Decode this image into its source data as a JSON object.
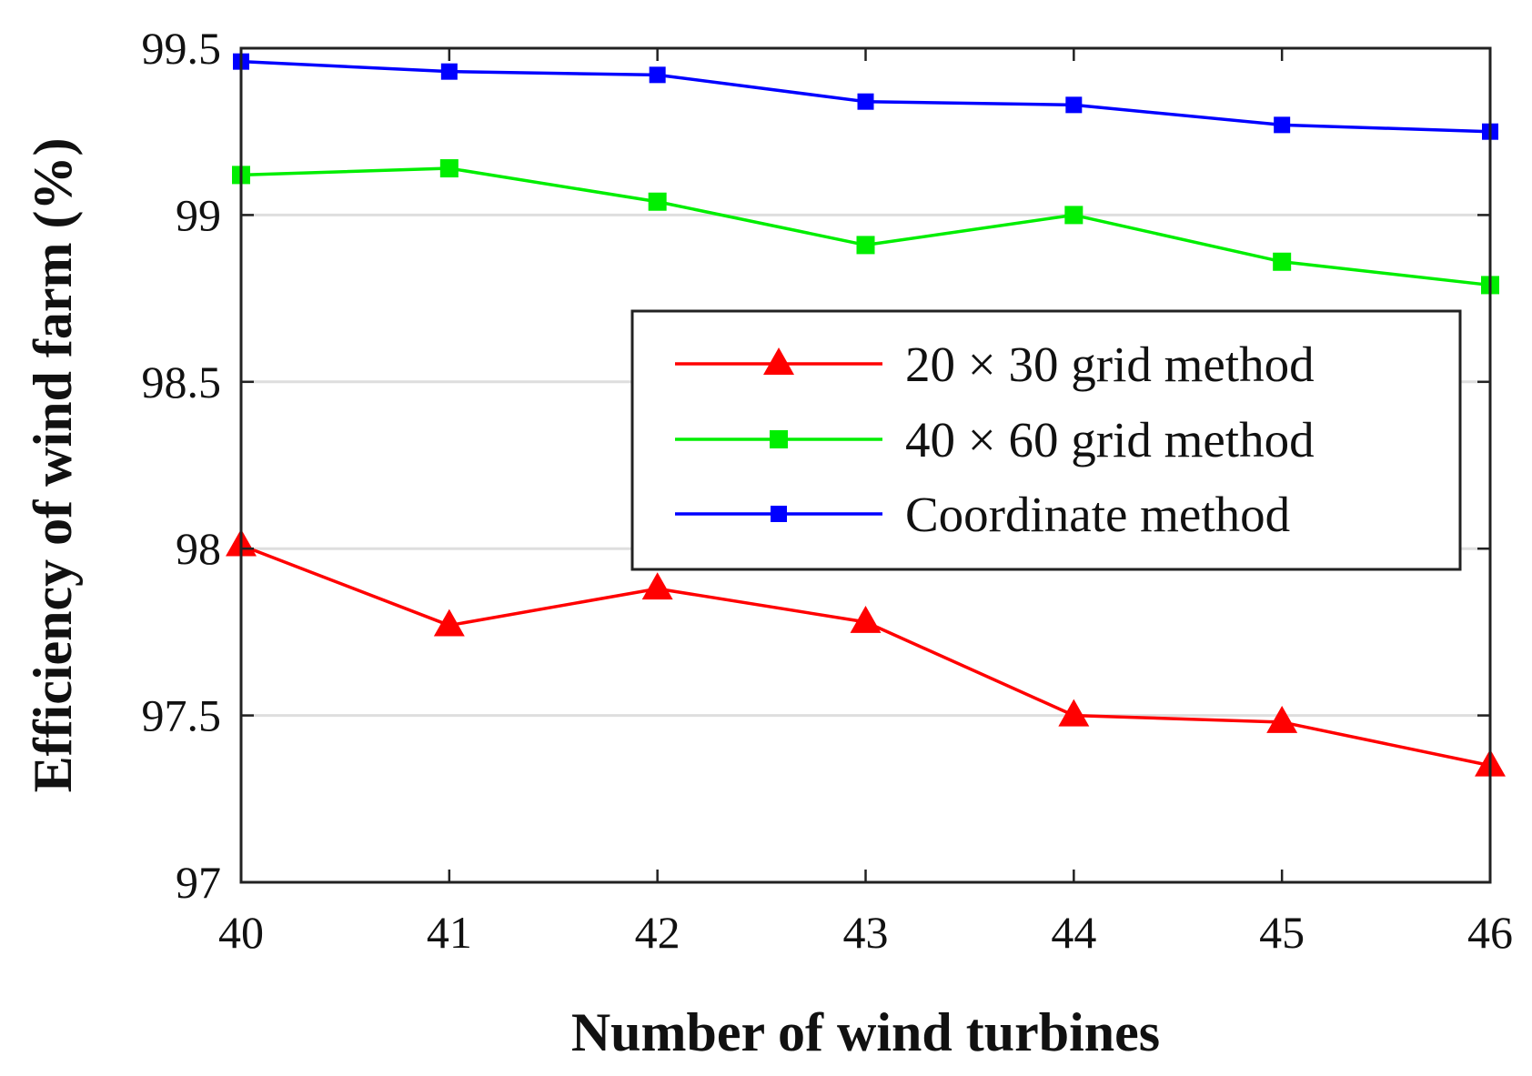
{
  "chart_data": {
    "type": "line",
    "title": "",
    "xlabel": "Number of wind turbines",
    "ylabel": "Efficiency of wind farm (%)",
    "x": [
      40,
      41,
      42,
      43,
      44,
      45,
      46
    ],
    "xticks": [
      "40",
      "41",
      "42",
      "43",
      "44",
      "45",
      "46"
    ],
    "yticks": [
      "97",
      "97.5",
      "98",
      "98.5",
      "99",
      "99.5"
    ],
    "xlim": [
      40,
      46
    ],
    "ylim": [
      97,
      99.5
    ],
    "grid": "horizontal",
    "legend_position": "right-center",
    "series": [
      {
        "name": "20 × 30 grid method",
        "color": "#ff0000",
        "marker": "triangle",
        "values": [
          98.01,
          97.77,
          97.88,
          97.78,
          97.5,
          97.48,
          97.35
        ]
      },
      {
        "name": "40 × 60 grid method",
        "color": "#00ee00",
        "marker": "square",
        "values": [
          99.12,
          99.14,
          99.04,
          98.91,
          99.0,
          98.86,
          98.79
        ]
      },
      {
        "name": "Coordinate method",
        "color": "#0000ff",
        "marker": "square",
        "values": [
          99.46,
          99.43,
          99.42,
          99.34,
          99.33,
          99.27,
          99.25
        ]
      }
    ]
  }
}
